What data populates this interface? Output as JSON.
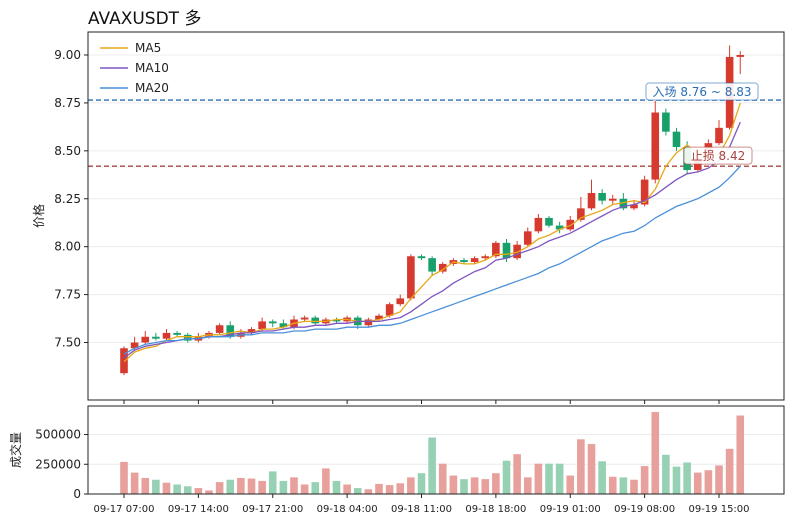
{
  "chart_data": [
    {
      "type": "candlestick",
      "title": "AVAXUSDT 多",
      "ylabel": "价格",
      "ylim": [
        7.2,
        9.12
      ],
      "yticks": [
        "7.50",
        "7.75",
        "8.00",
        "8.25",
        "8.50",
        "8.75",
        "9.00"
      ],
      "ytick_values": [
        7.5,
        7.75,
        8.0,
        8.25,
        8.5,
        8.75,
        9.0
      ],
      "xticks": [
        "09-17 07:00",
        "09-17 14:00",
        "09-17 21:00",
        "09-18 04:00",
        "09-18 11:00",
        "09-18 18:00",
        "09-19 01:00",
        "09-19 08:00",
        "09-19 15:00"
      ],
      "xtick_index": [
        0,
        7,
        14,
        21,
        28,
        35,
        42,
        49,
        56
      ],
      "candles": [
        [
          7.34,
          7.47,
          7.48,
          7.33
        ],
        [
          7.47,
          7.5,
          7.53,
          7.46
        ],
        [
          7.5,
          7.53,
          7.56,
          7.49
        ],
        [
          7.53,
          7.52,
          7.55,
          7.51
        ],
        [
          7.52,
          7.55,
          7.57,
          7.51
        ],
        [
          7.55,
          7.54,
          7.56,
          7.53
        ],
        [
          7.54,
          7.51,
          7.55,
          7.5
        ],
        [
          7.51,
          7.53,
          7.55,
          7.5
        ],
        [
          7.53,
          7.55,
          7.56,
          7.52
        ],
        [
          7.55,
          7.59,
          7.6,
          7.54
        ],
        [
          7.59,
          7.53,
          7.61,
          7.52
        ],
        [
          7.53,
          7.55,
          7.57,
          7.52
        ],
        [
          7.55,
          7.57,
          7.58,
          7.54
        ],
        [
          7.57,
          7.61,
          7.63,
          7.56
        ],
        [
          7.61,
          7.6,
          7.62,
          7.58
        ],
        [
          7.6,
          7.58,
          7.62,
          7.57
        ],
        [
          7.58,
          7.62,
          7.64,
          7.57
        ],
        [
          7.62,
          7.63,
          7.64,
          7.61
        ],
        [
          7.63,
          7.6,
          7.64,
          7.59
        ],
        [
          7.6,
          7.62,
          7.63,
          7.59
        ],
        [
          7.62,
          7.61,
          7.63,
          7.6
        ],
        [
          7.61,
          7.63,
          7.64,
          7.6
        ],
        [
          7.63,
          7.59,
          7.64,
          7.57
        ],
        [
          7.59,
          7.62,
          7.63,
          7.58
        ],
        [
          7.62,
          7.64,
          7.65,
          7.61
        ],
        [
          7.64,
          7.7,
          7.71,
          7.63
        ],
        [
          7.7,
          7.73,
          7.75,
          7.69
        ],
        [
          7.73,
          7.95,
          7.96,
          7.72
        ],
        [
          7.95,
          7.94,
          7.96,
          7.93
        ],
        [
          7.94,
          7.87,
          7.95,
          7.85
        ],
        [
          7.87,
          7.91,
          7.92,
          7.86
        ],
        [
          7.91,
          7.93,
          7.94,
          7.9
        ],
        [
          7.93,
          7.92,
          7.94,
          7.91
        ],
        [
          7.92,
          7.94,
          7.95,
          7.91
        ],
        [
          7.94,
          7.95,
          7.96,
          7.93
        ],
        [
          7.95,
          8.02,
          8.03,
          7.94
        ],
        [
          8.02,
          7.94,
          8.04,
          7.92
        ],
        [
          7.94,
          8.01,
          8.03,
          7.93
        ],
        [
          8.01,
          8.08,
          8.1,
          8.0
        ],
        [
          8.08,
          8.15,
          8.17,
          8.07
        ],
        [
          8.15,
          8.11,
          8.16,
          8.1
        ],
        [
          8.11,
          8.09,
          8.13,
          8.07
        ],
        [
          8.09,
          8.14,
          8.16,
          8.08
        ],
        [
          8.14,
          8.2,
          8.26,
          8.13
        ],
        [
          8.2,
          8.28,
          8.35,
          8.19
        ],
        [
          8.28,
          8.24,
          8.3,
          8.22
        ],
        [
          8.24,
          8.25,
          8.27,
          8.22
        ],
        [
          8.25,
          8.2,
          8.28,
          8.19
        ],
        [
          8.2,
          8.22,
          8.24,
          8.19
        ],
        [
          8.22,
          8.35,
          8.37,
          8.21
        ],
        [
          8.35,
          8.7,
          8.76,
          8.33
        ],
        [
          8.7,
          8.6,
          8.72,
          8.58
        ],
        [
          8.6,
          8.52,
          8.62,
          8.5
        ],
        [
          8.52,
          8.4,
          8.55,
          8.38
        ],
        [
          8.4,
          8.46,
          8.48,
          8.39
        ],
        [
          8.46,
          8.54,
          8.56,
          8.45
        ],
        [
          8.54,
          8.62,
          8.66,
          8.53
        ],
        [
          8.62,
          8.99,
          9.05,
          8.61
        ],
        [
          8.99,
          9.0,
          9.02,
          8.9
        ]
      ],
      "volumes": [
        270000,
        180000,
        135000,
        120000,
        95000,
        80000,
        65000,
        50000,
        30000,
        100000,
        120000,
        135000,
        130000,
        110000,
        190000,
        110000,
        140000,
        80000,
        100000,
        215000,
        110000,
        80000,
        50000,
        40000,
        85000,
        75000,
        90000,
        140000,
        175000,
        475000,
        255000,
        155000,
        125000,
        140000,
        125000,
        175000,
        280000,
        335000,
        140000,
        255000,
        255000,
        255000,
        155000,
        460000,
        420000,
        275000,
        145000,
        140000,
        120000,
        235000,
        690000,
        330000,
        230000,
        265000,
        180000,
        200000,
        240000,
        380000,
        660000
      ],
      "series": [
        {
          "name": "MA5",
          "color": "#e6a817",
          "values": [
            7.4,
            7.45,
            7.47,
            7.48,
            7.51,
            7.53,
            7.53,
            7.53,
            7.54,
            7.54,
            7.55,
            7.56,
            7.55,
            7.57,
            7.57,
            7.58,
            7.6,
            7.61,
            7.61,
            7.61,
            7.62,
            7.62,
            7.61,
            7.61,
            7.62,
            7.64,
            7.66,
            7.73,
            7.79,
            7.85,
            7.88,
            7.92,
            7.91,
            7.91,
            7.93,
            7.96,
            7.96,
            7.97,
            8.0,
            8.04,
            8.06,
            8.09,
            8.11,
            8.15,
            8.17,
            8.19,
            8.22,
            8.23,
            8.24,
            8.23,
            8.3,
            8.42,
            8.49,
            8.53,
            8.49,
            8.47,
            8.48,
            8.58,
            8.75
          ]
        },
        {
          "name": "MA10",
          "color": "#7e57c2",
          "values": [
            7.42,
            7.46,
            7.48,
            7.49,
            7.5,
            7.51,
            7.52,
            7.52,
            7.53,
            7.53,
            7.54,
            7.55,
            7.55,
            7.56,
            7.56,
            7.57,
            7.58,
            7.58,
            7.59,
            7.59,
            7.6,
            7.6,
            7.61,
            7.61,
            7.61,
            7.62,
            7.63,
            7.66,
            7.7,
            7.74,
            7.77,
            7.81,
            7.84,
            7.87,
            7.89,
            7.93,
            7.94,
            7.96,
            7.98,
            8.0,
            8.03,
            8.05,
            8.07,
            8.1,
            8.13,
            8.16,
            8.19,
            8.21,
            8.22,
            8.24,
            8.27,
            8.31,
            8.35,
            8.38,
            8.39,
            8.41,
            8.45,
            8.52,
            8.65
          ]
        },
        {
          "name": "MA20",
          "color": "#4a90d9",
          "values": [
            7.44,
            7.47,
            7.49,
            7.5,
            7.51,
            7.51,
            7.52,
            7.52,
            7.53,
            7.53,
            7.53,
            7.54,
            7.54,
            7.55,
            7.55,
            7.55,
            7.56,
            7.56,
            7.57,
            7.57,
            7.57,
            7.58,
            7.58,
            7.58,
            7.59,
            7.59,
            7.6,
            7.62,
            7.64,
            7.66,
            7.68,
            7.7,
            7.72,
            7.74,
            7.76,
            7.78,
            7.8,
            7.82,
            7.84,
            7.86,
            7.89,
            7.91,
            7.94,
            7.97,
            8.0,
            8.03,
            8.05,
            8.07,
            8.08,
            8.11,
            8.15,
            8.18,
            8.21,
            8.23,
            8.25,
            8.28,
            8.31,
            8.36,
            8.42
          ]
        }
      ],
      "hlines": [
        {
          "value": 8.765,
          "label": "入场 8.76 ~ 8.83",
          "color": "#2a6db5"
        },
        {
          "value": 8.42,
          "label": "止损 8.42",
          "color": "#a94442"
        }
      ],
      "colors": {
        "up": "#d63a2f",
        "down": "#17a06a",
        "up_vol": "#e8a09c",
        "down_vol": "#97d1b4"
      }
    },
    {
      "type": "bar",
      "ylabel": "成交量",
      "yticks": [
        "0",
        "250000",
        "500000"
      ],
      "ytick_values": [
        0,
        250000,
        500000
      ],
      "ylim": [
        0,
        740000
      ]
    }
  ]
}
